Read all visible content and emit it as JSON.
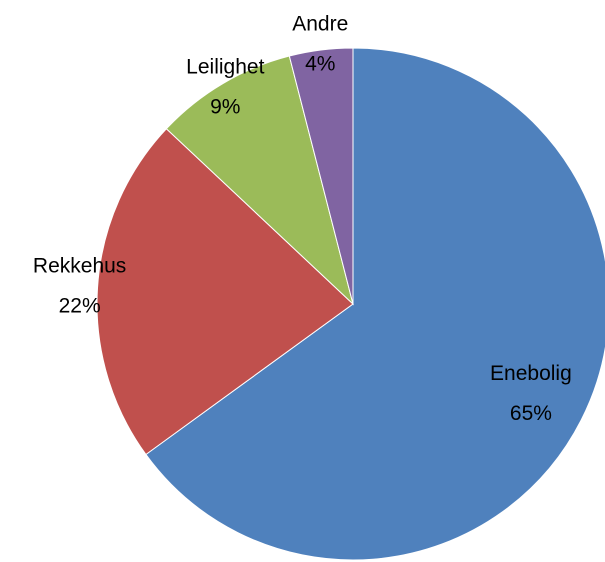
{
  "chart_data": {
    "type": "pie",
    "categories": [
      "Enebolig",
      "Rekkehus",
      "Leilighet",
      "Andre"
    ],
    "values": [
      65,
      22,
      9,
      4
    ],
    "value_labels": [
      "65%",
      "22%",
      "9%",
      "4%"
    ],
    "colors": [
      "#4f81bd",
      "#c0504d",
      "#9bbb59",
      "#8064a2"
    ]
  }
}
